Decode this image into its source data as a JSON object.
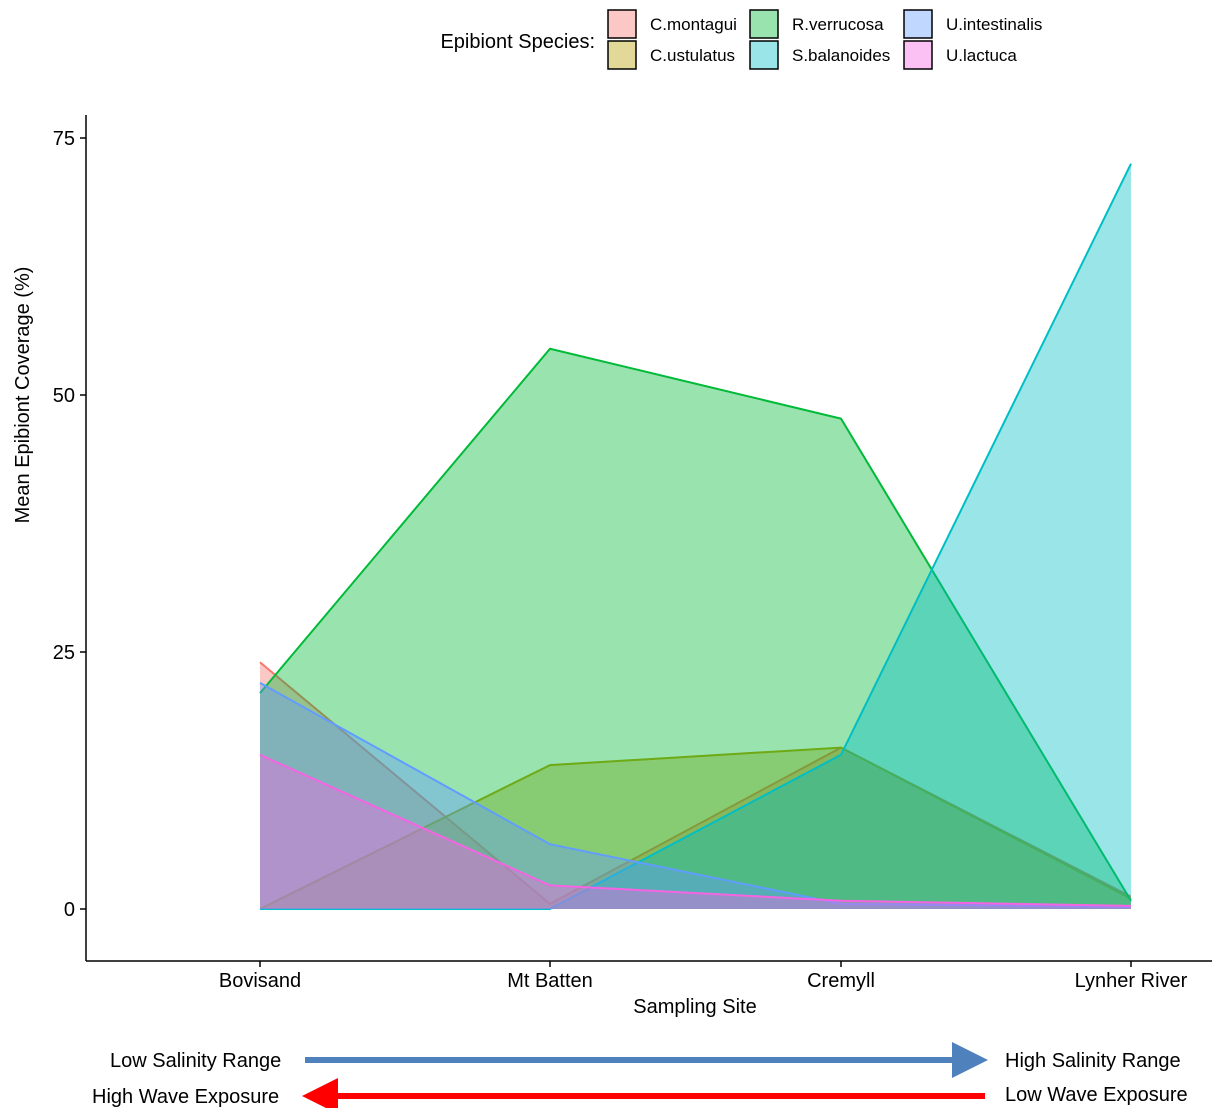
{
  "chart_data": {
    "type": "area",
    "title": "",
    "xlabel": "Sampling Site",
    "ylabel": "Mean Epibiont Coverage (%)",
    "categories": [
      "Bovisand",
      "Mt Batten",
      "Cremyll",
      "Lynher River"
    ],
    "ylim": [
      -5,
      78
    ],
    "yticks": [
      0,
      25,
      50,
      75
    ],
    "grid": false,
    "legend_position": "top",
    "legend_title": "Epibiont Species:",
    "series": [
      {
        "name": "C.montagui",
        "color": "#F8766D",
        "values": [
          24,
          0.5,
          15.7,
          1.2
        ]
      },
      {
        "name": "C.ustulatus",
        "color": "#B79F00",
        "values": [
          0,
          14,
          15.7,
          1.0
        ]
      },
      {
        "name": "R.verrucosa",
        "color": "#00BA38",
        "values": [
          21,
          54.5,
          47.7,
          0.8
        ]
      },
      {
        "name": "S.balanoides",
        "color": "#00BFC4",
        "values": [
          0,
          0,
          15,
          72.5
        ]
      },
      {
        "name": "U.intestinalis",
        "color": "#619CFF",
        "values": [
          22,
          6.3,
          0.5,
          0.2
        ]
      },
      {
        "name": "U.lactuca",
        "color": "#F564E3",
        "values": [
          15,
          2.3,
          0.8,
          0.3
        ]
      }
    ]
  },
  "gradients": {
    "salinity_low": "Low Salinity Range",
    "salinity_high": "High Salinity Range",
    "salinity_arrow_color": "#4F81BD",
    "wave_high": "High Wave Exposure",
    "wave_low": "Low Wave Exposure",
    "wave_arrow_color": "#FF0000"
  }
}
